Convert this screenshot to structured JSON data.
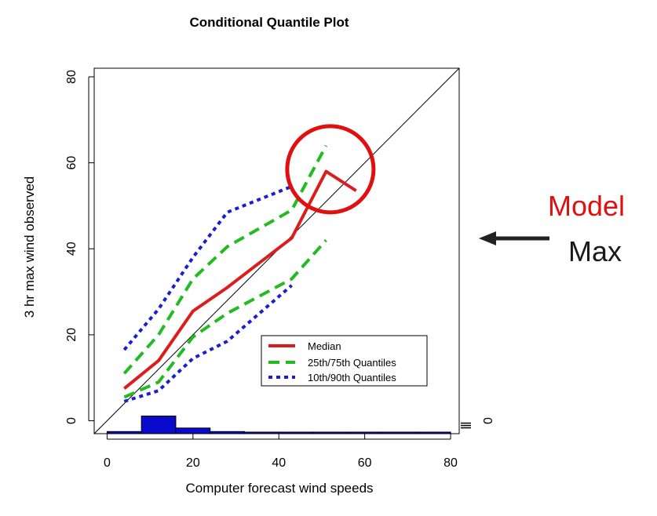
{
  "chart_data": {
    "type": "line",
    "title": "Conditional Quantile Plot",
    "xlabel": "Computer forecast wind speeds",
    "ylabel": "3 hr max wind observed",
    "xlim": [
      -3,
      82
    ],
    "ylim": [
      -3,
      82
    ],
    "x_ticks": [
      "0",
      "20",
      "40",
      "60",
      "80"
    ],
    "y_ticks": [
      "0",
      "20",
      "40",
      "60",
      "80"
    ],
    "right_axis_tick": "0",
    "grid": false,
    "legend_position": "bottom-right",
    "reference_line": "y = x",
    "series": [
      {
        "name": "Median",
        "color": "#dd1c1c",
        "style": "solid",
        "x": [
          4,
          12,
          20,
          28,
          43,
          51,
          58
        ],
        "y": [
          7.5,
          14,
          25.5,
          31,
          42.5,
          58,
          53.5
        ]
      },
      {
        "name": "25th/75th Quantiles",
        "label": "upper",
        "color": "#22bb22",
        "style": "dashed",
        "x": [
          4,
          12,
          20,
          28,
          43,
          51
        ],
        "y": [
          11,
          20,
          33,
          40.5,
          49,
          64
        ]
      },
      {
        "name": "25th/75th Quantiles",
        "label": "lower",
        "color": "#22bb22",
        "style": "dashed",
        "x": [
          4,
          12,
          20,
          28,
          43,
          51
        ],
        "y": [
          5.5,
          9,
          19.5,
          25,
          33,
          42
        ]
      },
      {
        "name": "10th/90th Quantiles",
        "label": "upper",
        "color": "#1c1cd0",
        "style": "dotted",
        "x": [
          4,
          12,
          20,
          28,
          43
        ],
        "y": [
          16.5,
          26,
          38,
          48.5,
          54.5
        ]
      },
      {
        "name": "10th/90th Quantiles",
        "label": "lower",
        "color": "#1c1cd0",
        "style": "dotted",
        "x": [
          4,
          12,
          20,
          28,
          43
        ],
        "y": [
          4.5,
          7,
          14.5,
          18.5,
          31.5
        ]
      }
    ],
    "histogram": {
      "bin_edges": [
        0,
        8,
        16,
        24,
        32,
        40,
        48,
        56,
        64,
        72,
        80
      ],
      "heights": [
        0.3,
        2.5,
        0.8,
        0.3,
        0.15,
        0.1,
        0.1,
        0.05,
        0.05,
        0.05
      ]
    },
    "legend": [
      "Median",
      "25th/75th Quantiles",
      "10th/90th Quantiles"
    ],
    "highlight_circle": {
      "x": 52,
      "y": 58.5
    }
  },
  "annotation": {
    "line1": "Model",
    "line2": "Max",
    "line1_color": "#e01010",
    "line2_color": "#1a1a1a"
  }
}
